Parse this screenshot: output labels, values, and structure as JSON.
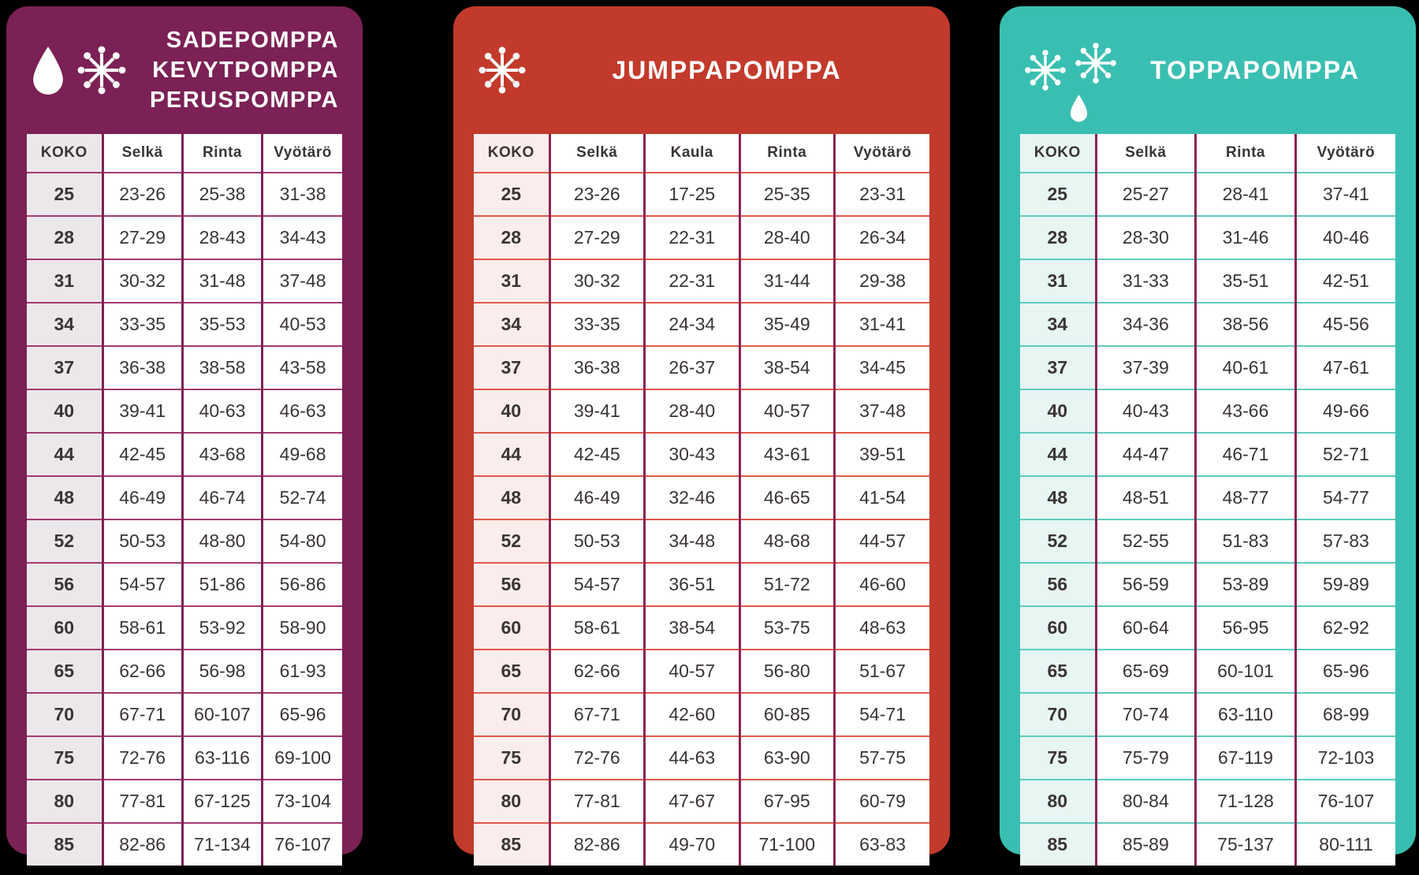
{
  "page": {
    "background_color": "#000000",
    "title_text_color": "#FFFFFF"
  },
  "panels": [
    {
      "id": "sadepomppa-kevytpomppa-peruspomppa",
      "title_lines": [
        "SADEPOMPPA",
        "KEVYTPOMPPA",
        "PERUSPOMPPA"
      ],
      "icons": [
        "water-drop",
        "snowflake"
      ],
      "colors": {
        "background": "#7B2155",
        "koko_column": "#ECE7EB",
        "row_border": "#A53A72",
        "column_border": "#7B2155"
      },
      "columns": [
        "KOKO",
        "Selkä",
        "Rinta",
        "Vyötärö"
      ],
      "rows": [
        [
          "25",
          "23-26",
          "25-38",
          "31-38"
        ],
        [
          "28",
          "27-29",
          "28-43",
          "34-43"
        ],
        [
          "31",
          "30-32",
          "31-48",
          "37-48"
        ],
        [
          "34",
          "33-35",
          "35-53",
          "40-53"
        ],
        [
          "37",
          "36-38",
          "38-58",
          "43-58"
        ],
        [
          "40",
          "39-41",
          "40-63",
          "46-63"
        ],
        [
          "44",
          "42-45",
          "43-68",
          "49-68"
        ],
        [
          "48",
          "46-49",
          "46-74",
          "52-74"
        ],
        [
          "52",
          "50-53",
          "48-80",
          "54-80"
        ],
        [
          "56",
          "54-57",
          "51-86",
          "56-86"
        ],
        [
          "60",
          "58-61",
          "53-92",
          "58-90"
        ],
        [
          "65",
          "62-66",
          "56-98",
          "61-93"
        ],
        [
          "70",
          "67-71",
          "60-107",
          "65-96"
        ],
        [
          "75",
          "72-76",
          "63-116",
          "69-100"
        ],
        [
          "80",
          "77-81",
          "67-125",
          "73-104"
        ],
        [
          "85",
          "82-86",
          "71-134",
          "76-107"
        ]
      ]
    },
    {
      "id": "jumppapomppa",
      "title_lines": [
        "JUMPPAPOMPPA"
      ],
      "icons": [
        "snowflake"
      ],
      "colors": {
        "background": "#C23A2C",
        "koko_column": "#FBEDEB",
        "row_border": "#E2594B",
        "column_border": "#8C2353"
      },
      "columns": [
        "KOKO",
        "Selkä",
        "Kaula",
        "Rinta",
        "Vyötärö"
      ],
      "rows": [
        [
          "25",
          "23-26",
          "17-25",
          "25-35",
          "23-31"
        ],
        [
          "28",
          "27-29",
          "22-31",
          "28-40",
          "26-34"
        ],
        [
          "31",
          "30-32",
          "22-31",
          "31-44",
          "29-38"
        ],
        [
          "34",
          "33-35",
          "24-34",
          "35-49",
          "31-41"
        ],
        [
          "37",
          "36-38",
          "26-37",
          "38-54",
          "34-45"
        ],
        [
          "40",
          "39-41",
          "28-40",
          "40-57",
          "37-48"
        ],
        [
          "44",
          "42-45",
          "30-43",
          "43-61",
          "39-51"
        ],
        [
          "48",
          "46-49",
          "32-46",
          "46-65",
          "41-54"
        ],
        [
          "52",
          "50-53",
          "34-48",
          "48-68",
          "44-57"
        ],
        [
          "56",
          "54-57",
          "36-51",
          "51-72",
          "46-60"
        ],
        [
          "60",
          "58-61",
          "38-54",
          "53-75",
          "48-63"
        ],
        [
          "65",
          "62-66",
          "40-57",
          "56-80",
          "51-67"
        ],
        [
          "70",
          "67-71",
          "42-60",
          "60-85",
          "54-71"
        ],
        [
          "75",
          "72-76",
          "44-63",
          "63-90",
          "57-75"
        ],
        [
          "80",
          "77-81",
          "47-67",
          "67-95",
          "60-79"
        ],
        [
          "85",
          "82-86",
          "49-70",
          "71-100",
          "63-83"
        ]
      ]
    },
    {
      "id": "toppapomppa",
      "title_lines": [
        "TOPPAPOMPPA"
      ],
      "icons": [
        "snowflake",
        "snowflake",
        "water-drop-small"
      ],
      "colors": {
        "background": "#39BFB1",
        "koko_column": "#E7F5F3",
        "row_border": "#5FCCBF",
        "column_border": "#8C2353"
      },
      "columns": [
        "KOKO",
        "Selkä",
        "Rinta",
        "Vyötärö"
      ],
      "rows": [
        [
          "25",
          "25-27",
          "28-41",
          "37-41"
        ],
        [
          "28",
          "28-30",
          "31-46",
          "40-46"
        ],
        [
          "31",
          "31-33",
          "35-51",
          "42-51"
        ],
        [
          "34",
          "34-36",
          "38-56",
          "45-56"
        ],
        [
          "37",
          "37-39",
          "40-61",
          "47-61"
        ],
        [
          "40",
          "40-43",
          "43-66",
          "49-66"
        ],
        [
          "44",
          "44-47",
          "46-71",
          "52-71"
        ],
        [
          "48",
          "48-51",
          "48-77",
          "54-77"
        ],
        [
          "52",
          "52-55",
          "51-83",
          "57-83"
        ],
        [
          "56",
          "56-59",
          "53-89",
          "59-89"
        ],
        [
          "60",
          "60-64",
          "56-95",
          "62-92"
        ],
        [
          "65",
          "65-69",
          "60-101",
          "65-96"
        ],
        [
          "70",
          "70-74",
          "63-110",
          "68-99"
        ],
        [
          "75",
          "75-79",
          "67-119",
          "72-103"
        ],
        [
          "80",
          "80-84",
          "71-128",
          "76-107"
        ],
        [
          "85",
          "85-89",
          "75-137",
          "80-111"
        ]
      ]
    }
  ]
}
